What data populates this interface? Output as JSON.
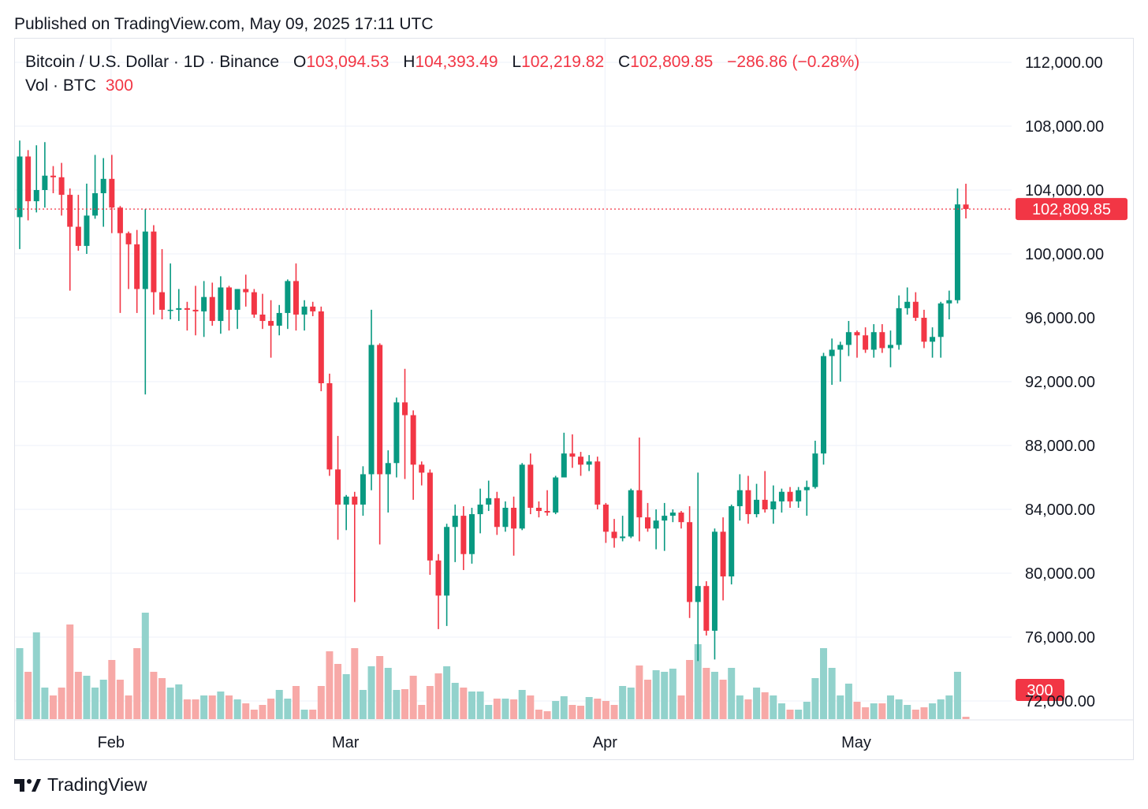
{
  "header": {
    "published": "Published on TradingView.com, May 09, 2025 17:11 UTC"
  },
  "legend": {
    "symbol": "Bitcoin / U.S. Dollar · 1D · Binance",
    "o_label": "O",
    "o_value": "103,094.53",
    "h_label": "H",
    "h_value": "104,393.49",
    "l_label": "L",
    "l_value": "102,219.82",
    "c_label": "C",
    "c_value": "102,809.85",
    "change": "−286.86 (−0.28%)",
    "vol_label": "Vol · BTC",
    "vol_value": "300"
  },
  "footer": {
    "brand": "TradingView"
  },
  "colors": {
    "up": "#089981",
    "down": "#f23645",
    "up_vol": "#92d2cc",
    "down_vol": "#f7a9a7",
    "grid": "#f0f3fa",
    "current": "#f23645"
  },
  "chart_data": {
    "type": "candlestick",
    "ylim": [
      70000,
      114000
    ],
    "y_ticks": [
      "112,000.00",
      "108,000.00",
      "104,000.00",
      "100,000.00",
      "96,000.00",
      "92,000.00",
      "88,000.00",
      "84,000.00",
      "80,000.00",
      "76,000.00",
      "72,000.00"
    ],
    "y_tick_values": [
      112000,
      108000,
      104000,
      100000,
      96000,
      92000,
      88000,
      84000,
      80000,
      76000,
      72000
    ],
    "x_ticks": [
      {
        "label": "Feb",
        "index": 11
      },
      {
        "label": "Mar",
        "index": 39
      },
      {
        "label": "Apr",
        "index": 70
      },
      {
        "label": "May",
        "index": 100
      }
    ],
    "current_price": 102809.85,
    "current_price_label": "102,809.85",
    "current_volume_label": "300",
    "candles": [
      {
        "o": 102300,
        "h": 107100,
        "l": 100300,
        "c": 106100,
        "v": 9000
      },
      {
        "o": 106100,
        "h": 106500,
        "l": 102100,
        "c": 103300,
        "v": 6000
      },
      {
        "o": 103300,
        "h": 106800,
        "l": 102600,
        "c": 104000,
        "v": 11000
      },
      {
        "o": 104000,
        "h": 107000,
        "l": 102900,
        "c": 104900,
        "v": 4000
      },
      {
        "o": 104900,
        "h": 105500,
        "l": 103800,
        "c": 104800,
        "v": 3000
      },
      {
        "o": 104800,
        "h": 105700,
        "l": 102400,
        "c": 103700,
        "v": 4000
      },
      {
        "o": 103700,
        "h": 104100,
        "l": 97700,
        "c": 101700,
        "v": 12000
      },
      {
        "o": 101700,
        "h": 103700,
        "l": 100200,
        "c": 100500,
        "v": 6000
      },
      {
        "o": 100500,
        "h": 104400,
        "l": 100000,
        "c": 102400,
        "v": 5500
      },
      {
        "o": 102400,
        "h": 106200,
        "l": 102200,
        "c": 103800,
        "v": 4000
      },
      {
        "o": 103800,
        "h": 106000,
        "l": 101700,
        "c": 104700,
        "v": 5000
      },
      {
        "o": 104700,
        "h": 106200,
        "l": 101300,
        "c": 102900,
        "v": 7500
      },
      {
        "o": 102900,
        "h": 103000,
        "l": 96300,
        "c": 101300,
        "v": 5000
      },
      {
        "o": 101300,
        "h": 101400,
        "l": 97800,
        "c": 100600,
        "v": 3000
      },
      {
        "o": 100600,
        "h": 101500,
        "l": 96300,
        "c": 97800,
        "v": 9000
      },
      {
        "o": 97800,
        "h": 102800,
        "l": 91200,
        "c": 101400,
        "v": 13500
      },
      {
        "o": 101400,
        "h": 101800,
        "l": 96200,
        "c": 97600,
        "v": 6000
      },
      {
        "o": 97600,
        "h": 100300,
        "l": 95900,
        "c": 96500,
        "v": 5200
      },
      {
        "o": 96500,
        "h": 99400,
        "l": 95900,
        "c": 96500,
        "v": 4000
      },
      {
        "o": 96500,
        "h": 97800,
        "l": 95800,
        "c": 96600,
        "v": 4400
      },
      {
        "o": 96600,
        "h": 97000,
        "l": 95200,
        "c": 96500,
        "v": 2500
      },
      {
        "o": 96500,
        "h": 98000,
        "l": 94900,
        "c": 96400,
        "v": 2500
      },
      {
        "o": 96400,
        "h": 98300,
        "l": 94800,
        "c": 97300,
        "v": 3000
      },
      {
        "o": 97300,
        "h": 98200,
        "l": 95500,
        "c": 95800,
        "v": 3000
      },
      {
        "o": 95800,
        "h": 98600,
        "l": 95000,
        "c": 97900,
        "v": 3500
      },
      {
        "o": 97900,
        "h": 98000,
        "l": 95200,
        "c": 96500,
        "v": 3000
      },
      {
        "o": 96500,
        "h": 97800,
        "l": 95300,
        "c": 97800,
        "v": 2500
      },
      {
        "o": 97800,
        "h": 98700,
        "l": 96700,
        "c": 97600,
        "v": 2000
      },
      {
        "o": 97600,
        "h": 97800,
        "l": 96000,
        "c": 96200,
        "v": 1200
      },
      {
        "o": 96200,
        "h": 97500,
        "l": 95300,
        "c": 95800,
        "v": 1800
      },
      {
        "o": 95800,
        "h": 97100,
        "l": 93500,
        "c": 95500,
        "v": 2600
      },
      {
        "o": 95500,
        "h": 96800,
        "l": 94900,
        "c": 96300,
        "v": 3700
      },
      {
        "o": 96300,
        "h": 98400,
        "l": 95300,
        "c": 98300,
        "v": 2600
      },
      {
        "o": 98300,
        "h": 99400,
        "l": 95200,
        "c": 96200,
        "v": 4200
      },
      {
        "o": 96200,
        "h": 97100,
        "l": 95200,
        "c": 96700,
        "v": 1200
      },
      {
        "o": 96700,
        "h": 97000,
        "l": 96100,
        "c": 96400,
        "v": 1200
      },
      {
        "o": 96400,
        "h": 96700,
        "l": 91400,
        "c": 91900,
        "v": 4200
      },
      {
        "o": 91900,
        "h": 92500,
        "l": 86100,
        "c": 86500,
        "v": 8600
      },
      {
        "o": 86500,
        "h": 88600,
        "l": 82100,
        "c": 84300,
        "v": 7000
      },
      {
        "o": 84300,
        "h": 84900,
        "l": 82700,
        "c": 84800,
        "v": 5700
      },
      {
        "o": 84800,
        "h": 85100,
        "l": 78200,
        "c": 84300,
        "v": 9000
      },
      {
        "o": 84300,
        "h": 86700,
        "l": 83600,
        "c": 86200,
        "v": 3700
      },
      {
        "o": 86200,
        "h": 96500,
        "l": 85200,
        "c": 94300,
        "v": 6700
      },
      {
        "o": 94300,
        "h": 94400,
        "l": 81800,
        "c": 86200,
        "v": 8000
      },
      {
        "o": 86200,
        "h": 87700,
        "l": 83800,
        "c": 86900,
        "v": 6500
      },
      {
        "o": 86900,
        "h": 91000,
        "l": 86000,
        "c": 90700,
        "v": 3700
      },
      {
        "o": 90700,
        "h": 92800,
        "l": 85900,
        "c": 89900,
        "v": 3800
      },
      {
        "o": 89900,
        "h": 90200,
        "l": 84600,
        "c": 86800,
        "v": 5500
      },
      {
        "o": 86800,
        "h": 87000,
        "l": 85500,
        "c": 86300,
        "v": 1800
      },
      {
        "o": 86300,
        "h": 86500,
        "l": 79900,
        "c": 80800,
        "v": 4200
      },
      {
        "o": 80800,
        "h": 81200,
        "l": 76500,
        "c": 78600,
        "v": 5800
      },
      {
        "o": 78600,
        "h": 83100,
        "l": 76700,
        "c": 82900,
        "v": 6700
      },
      {
        "o": 82900,
        "h": 84300,
        "l": 80700,
        "c": 83600,
        "v": 4600
      },
      {
        "o": 83600,
        "h": 84200,
        "l": 80200,
        "c": 81200,
        "v": 4000
      },
      {
        "o": 81200,
        "h": 84100,
        "l": 80600,
        "c": 83700,
        "v": 3500
      },
      {
        "o": 83700,
        "h": 85300,
        "l": 82500,
        "c": 84300,
        "v": 3500
      },
      {
        "o": 84300,
        "h": 85800,
        "l": 83900,
        "c": 84700,
        "v": 1800
      },
      {
        "o": 84700,
        "h": 85100,
        "l": 82400,
        "c": 82900,
        "v": 2600
      },
      {
        "o": 82900,
        "h": 84500,
        "l": 82600,
        "c": 84100,
        "v": 2600
      },
      {
        "o": 84100,
        "h": 84800,
        "l": 81100,
        "c": 82800,
        "v": 2500
      },
      {
        "o": 82800,
        "h": 86900,
        "l": 82700,
        "c": 86800,
        "v": 3700
      },
      {
        "o": 86800,
        "h": 87500,
        "l": 83700,
        "c": 84100,
        "v": 3000
      },
      {
        "o": 84100,
        "h": 84500,
        "l": 83500,
        "c": 83900,
        "v": 1200
      },
      {
        "o": 83900,
        "h": 85200,
        "l": 83600,
        "c": 83800,
        "v": 1000
      },
      {
        "o": 83800,
        "h": 86100,
        "l": 83700,
        "c": 86000,
        "v": 2300
      },
      {
        "o": 86000,
        "h": 88800,
        "l": 86000,
        "c": 87500,
        "v": 2900
      },
      {
        "o": 87500,
        "h": 88700,
        "l": 86600,
        "c": 87300,
        "v": 1800
      },
      {
        "o": 87300,
        "h": 87600,
        "l": 86100,
        "c": 86800,
        "v": 1700
      },
      {
        "o": 86800,
        "h": 87400,
        "l": 86400,
        "c": 87000,
        "v": 2800
      },
      {
        "o": 87000,
        "h": 87300,
        "l": 84000,
        "c": 84300,
        "v": 2600
      },
      {
        "o": 84300,
        "h": 84400,
        "l": 81900,
        "c": 82600,
        "v": 2300
      },
      {
        "o": 82600,
        "h": 83400,
        "l": 81600,
        "c": 82200,
        "v": 1800
      },
      {
        "o": 82200,
        "h": 83600,
        "l": 82000,
        "c": 82300,
        "v": 4200
      },
      {
        "o": 82300,
        "h": 85300,
        "l": 82200,
        "c": 85200,
        "v": 4000
      },
      {
        "o": 85200,
        "h": 88500,
        "l": 82000,
        "c": 83500,
        "v": 6800
      },
      {
        "o": 83500,
        "h": 84400,
        "l": 82600,
        "c": 82800,
        "v": 5000
      },
      {
        "o": 82800,
        "h": 84000,
        "l": 81500,
        "c": 83300,
        "v": 6200
      },
      {
        "o": 83300,
        "h": 84400,
        "l": 81400,
        "c": 83600,
        "v": 6000
      },
      {
        "o": 83600,
        "h": 84000,
        "l": 83200,
        "c": 83800,
        "v": 6400
      },
      {
        "o": 83800,
        "h": 83900,
        "l": 82800,
        "c": 83200,
        "v": 3000
      },
      {
        "o": 83200,
        "h": 84200,
        "l": 77200,
        "c": 78200,
        "v": 7500
      },
      {
        "o": 78200,
        "h": 86300,
        "l": 74500,
        "c": 79200,
        "v": 9500
      },
      {
        "o": 79200,
        "h": 79500,
        "l": 76100,
        "c": 76400,
        "v": 6500
      },
      {
        "o": 76400,
        "h": 82800,
        "l": 74600,
        "c": 82600,
        "v": 6000
      },
      {
        "o": 82600,
        "h": 83500,
        "l": 78300,
        "c": 79800,
        "v": 5000
      },
      {
        "o": 79800,
        "h": 84300,
        "l": 79300,
        "c": 84200,
        "v": 6500
      },
      {
        "o": 84200,
        "h": 86200,
        "l": 83300,
        "c": 85200,
        "v": 3000
      },
      {
        "o": 85200,
        "h": 86100,
        "l": 83100,
        "c": 83700,
        "v": 2500
      },
      {
        "o": 83700,
        "h": 85600,
        "l": 83500,
        "c": 84600,
        "v": 4000
      },
      {
        "o": 84600,
        "h": 86400,
        "l": 83800,
        "c": 84000,
        "v": 3400
      },
      {
        "o": 84000,
        "h": 85500,
        "l": 83100,
        "c": 84500,
        "v": 3000
      },
      {
        "o": 84500,
        "h": 85300,
        "l": 83800,
        "c": 85100,
        "v": 2000
      },
      {
        "o": 85100,
        "h": 85400,
        "l": 84100,
        "c": 84500,
        "v": 1200
      },
      {
        "o": 84500,
        "h": 85400,
        "l": 84100,
        "c": 85200,
        "v": 1200
      },
      {
        "o": 85200,
        "h": 85800,
        "l": 83600,
        "c": 85400,
        "v": 2200
      },
      {
        "o": 85400,
        "h": 88300,
        "l": 85300,
        "c": 87500,
        "v": 5200
      },
      {
        "o": 87500,
        "h": 93800,
        "l": 86800,
        "c": 93600,
        "v": 9000
      },
      {
        "o": 93600,
        "h": 94700,
        "l": 91800,
        "c": 94000,
        "v": 6500
      },
      {
        "o": 94000,
        "h": 94500,
        "l": 92000,
        "c": 94300,
        "v": 3000
      },
      {
        "o": 94300,
        "h": 95800,
        "l": 93600,
        "c": 95100,
        "v": 4500
      },
      {
        "o": 95100,
        "h": 95200,
        "l": 93500,
        "c": 94900,
        "v": 2200
      },
      {
        "o": 94900,
        "h": 95400,
        "l": 93800,
        "c": 94000,
        "v": 1500
      },
      {
        "o": 94000,
        "h": 95600,
        "l": 93500,
        "c": 95100,
        "v": 2000
      },
      {
        "o": 95100,
        "h": 95600,
        "l": 93800,
        "c": 94100,
        "v": 2000
      },
      {
        "o": 94100,
        "h": 95200,
        "l": 92900,
        "c": 94300,
        "v": 3000
      },
      {
        "o": 94300,
        "h": 97400,
        "l": 94000,
        "c": 96600,
        "v": 2500
      },
      {
        "o": 96600,
        "h": 97900,
        "l": 96200,
        "c": 97000,
        "v": 1800
      },
      {
        "o": 97000,
        "h": 97600,
        "l": 95800,
        "c": 96000,
        "v": 1200
      },
      {
        "o": 96000,
        "h": 96500,
        "l": 94100,
        "c": 94500,
        "v": 1500
      },
      {
        "o": 94500,
        "h": 95400,
        "l": 93500,
        "c": 94800,
        "v": 2000
      },
      {
        "o": 94800,
        "h": 97000,
        "l": 93500,
        "c": 96900,
        "v": 2500
      },
      {
        "o": 96900,
        "h": 97700,
        "l": 95900,
        "c": 97100,
        "v": 3000
      },
      {
        "o": 97100,
        "h": 104100,
        "l": 96900,
        "c": 103100,
        "v": 6000
      },
      {
        "o": 103094.53,
        "h": 104393.49,
        "l": 102219.82,
        "c": 102809.85,
        "v": 300
      }
    ]
  }
}
